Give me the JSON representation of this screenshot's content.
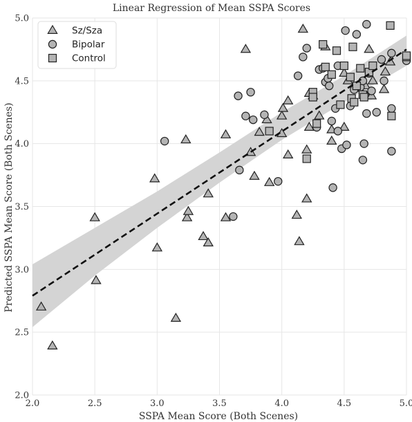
{
  "chart_data": {
    "type": "scatter",
    "title": "Linear Regression of Mean SSPA Scores",
    "xlabel": "SSPA Mean Score (Both Scenes)",
    "ylabel": "Predicted SSPA Mean Score (Both Scenes)",
    "xlim": [
      2.0,
      5.0
    ],
    "ylim": [
      2.0,
      5.0
    ],
    "xticks": [
      "2.0",
      "2.5",
      "3.0",
      "3.5",
      "4.0",
      "4.5",
      "5.0"
    ],
    "yticks": [
      "2.0",
      "2.5",
      "3.0",
      "3.5",
      "4.0",
      "4.5",
      "5.0"
    ],
    "grid": true,
    "legend_position": "top-left",
    "colors": {
      "marker_fill": "#b4b4b4",
      "marker_edge": "#222222",
      "band": "#d4d4d4",
      "line": "#111111",
      "grid": "#e6e6e6"
    },
    "series": [
      {
        "name": "Sz/Sza",
        "marker": "triangle",
        "points": [
          [
            2.07,
            2.7
          ],
          [
            2.16,
            2.39
          ],
          [
            2.5,
            3.41
          ],
          [
            2.51,
            2.91
          ],
          [
            2.98,
            3.72
          ],
          [
            3.0,
            3.17
          ],
          [
            3.15,
            2.61
          ],
          [
            3.23,
            4.03
          ],
          [
            3.24,
            3.41
          ],
          [
            3.25,
            3.46
          ],
          [
            3.37,
            3.26
          ],
          [
            3.41,
            3.21
          ],
          [
            3.41,
            3.6
          ],
          [
            3.55,
            4.07
          ],
          [
            3.55,
            3.41
          ],
          [
            3.71,
            4.75
          ],
          [
            3.75,
            3.93
          ],
          [
            3.78,
            3.74
          ],
          [
            3.82,
            4.09
          ],
          [
            3.88,
            4.19
          ],
          [
            3.9,
            3.69
          ],
          [
            4.0,
            4.08
          ],
          [
            4.0,
            4.22
          ],
          [
            4.01,
            4.28
          ],
          [
            4.05,
            4.34
          ],
          [
            4.05,
            3.91
          ],
          [
            4.12,
            3.43
          ],
          [
            4.14,
            3.22
          ],
          [
            4.17,
            4.91
          ],
          [
            4.2,
            3.56
          ],
          [
            4.2,
            3.95
          ],
          [
            4.22,
            4.4
          ],
          [
            4.22,
            4.13
          ],
          [
            4.25,
            4.38
          ],
          [
            4.3,
            4.22
          ],
          [
            4.35,
            4.77
          ],
          [
            4.4,
            4.11
          ],
          [
            4.4,
            4.02
          ],
          [
            4.5,
            4.56
          ],
          [
            4.5,
            4.13
          ],
          [
            4.53,
            4.5
          ],
          [
            4.62,
            4.44
          ],
          [
            4.67,
            4.46
          ],
          [
            4.68,
            4.38
          ],
          [
            4.7,
            4.75
          ],
          [
            4.72,
            4.38
          ],
          [
            4.73,
            4.5
          ],
          [
            4.82,
            4.43
          ],
          [
            4.83,
            4.57
          ],
          [
            4.87,
            4.65
          ]
        ]
      },
      {
        "name": "Bipolar",
        "marker": "circle",
        "points": [
          [
            3.06,
            4.02
          ],
          [
            3.61,
            3.42
          ],
          [
            3.65,
            4.38
          ],
          [
            3.66,
            3.79
          ],
          [
            3.71,
            4.22
          ],
          [
            3.75,
            4.41
          ],
          [
            3.77,
            4.19
          ],
          [
            3.86,
            4.23
          ],
          [
            3.97,
            3.7
          ],
          [
            4.13,
            4.54
          ],
          [
            4.17,
            4.69
          ],
          [
            4.2,
            4.76
          ],
          [
            4.28,
            4.13
          ],
          [
            4.3,
            4.59
          ],
          [
            4.33,
            4.6
          ],
          [
            4.35,
            4.49
          ],
          [
            4.37,
            4.52
          ],
          [
            4.38,
            4.46
          ],
          [
            4.4,
            4.18
          ],
          [
            4.41,
            3.65
          ],
          [
            4.43,
            4.28
          ],
          [
            4.45,
            4.1
          ],
          [
            4.45,
            4.62
          ],
          [
            4.48,
            3.96
          ],
          [
            4.51,
            4.9
          ],
          [
            4.52,
            3.99
          ],
          [
            4.55,
            4.3
          ],
          [
            4.58,
            4.43
          ],
          [
            4.6,
            4.87
          ],
          [
            4.63,
            4.45
          ],
          [
            4.65,
            4.5
          ],
          [
            4.65,
            3.87
          ],
          [
            4.66,
            4.0
          ],
          [
            4.68,
            4.24
          ],
          [
            4.68,
            4.95
          ],
          [
            4.7,
            4.56
          ],
          [
            4.72,
            4.42
          ],
          [
            4.76,
            4.25
          ],
          [
            4.8,
            4.67
          ],
          [
            4.82,
            4.5
          ],
          [
            4.88,
            4.72
          ],
          [
            4.88,
            4.28
          ],
          [
            4.88,
            3.94
          ],
          [
            5.0,
            4.66
          ]
        ]
      },
      {
        "name": "Control",
        "marker": "square",
        "points": [
          [
            3.9,
            4.1
          ],
          [
            4.2,
            3.88
          ],
          [
            4.25,
            4.41
          ],
          [
            4.25,
            4.37
          ],
          [
            4.28,
            4.16
          ],
          [
            4.33,
            4.79
          ],
          [
            4.35,
            4.61
          ],
          [
            4.4,
            4.55
          ],
          [
            4.44,
            4.74
          ],
          [
            4.47,
            4.31
          ],
          [
            4.5,
            4.62
          ],
          [
            4.55,
            4.53
          ],
          [
            4.56,
            4.36
          ],
          [
            4.57,
            4.77
          ],
          [
            4.58,
            4.33
          ],
          [
            4.6,
            4.46
          ],
          [
            4.63,
            4.6
          ],
          [
            4.65,
            4.39
          ],
          [
            4.66,
            4.37
          ],
          [
            4.7,
            4.57
          ],
          [
            4.73,
            4.62
          ],
          [
            4.87,
            4.94
          ],
          [
            4.88,
            4.22
          ],
          [
            5.0,
            4.69
          ],
          [
            5.0,
            4.7
          ]
        ]
      }
    ],
    "regression": {
      "line": [
        [
          2.0,
          2.79
        ],
        [
          5.0,
          4.75
        ]
      ],
      "ci_band": {
        "x": [
          2.0,
          2.5,
          3.0,
          3.5,
          4.0,
          4.5,
          5.0
        ],
        "lower": [
          2.54,
          2.95,
          3.33,
          3.69,
          4.03,
          4.33,
          4.62
        ],
        "upper": [
          3.04,
          3.33,
          3.62,
          3.93,
          4.25,
          4.54,
          4.86
        ]
      }
    }
  }
}
